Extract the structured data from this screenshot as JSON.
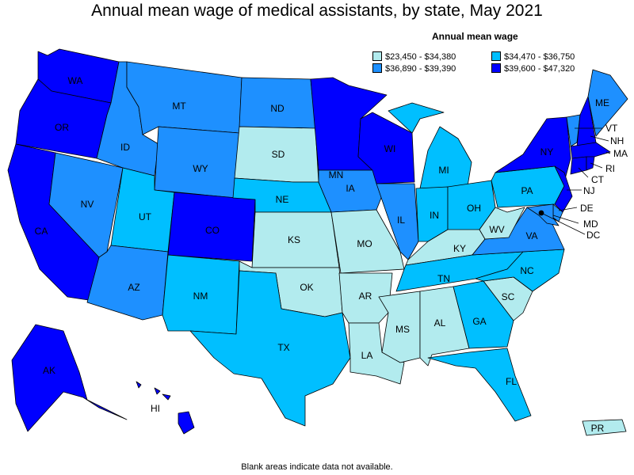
{
  "title": "Annual mean wage of medical assistants, by state, May 2021",
  "legend": {
    "title": "Annual mean wage",
    "items": [
      {
        "label": "$23,450 - $34,380",
        "color": "#b2ebee"
      },
      {
        "label": "$34,470 - $36,750",
        "color": "#00bfff"
      },
      {
        "label": "$36,890 - $39,390",
        "color": "#1e90ff"
      },
      {
        "label": "$39,600 - $47,320",
        "color": "#0000ff"
      }
    ]
  },
  "footnote": "Blank areas indicate data not available.",
  "states": {
    "WA": {
      "label": "WA",
      "bin": 3
    },
    "OR": {
      "label": "OR",
      "bin": 3
    },
    "CA": {
      "label": "CA",
      "bin": 3
    },
    "NV": {
      "label": "NV",
      "bin": 2
    },
    "ID": {
      "label": "ID",
      "bin": 2
    },
    "MT": {
      "label": "MT",
      "bin": 2
    },
    "WY": {
      "label": "WY",
      "bin": 2
    },
    "UT": {
      "label": "UT",
      "bin": 1
    },
    "AZ": {
      "label": "AZ",
      "bin": 2
    },
    "CO": {
      "label": "CO",
      "bin": 3
    },
    "NM": {
      "label": "NM",
      "bin": 1
    },
    "ND": {
      "label": "ND",
      "bin": 2
    },
    "SD": {
      "label": "SD",
      "bin": 0
    },
    "NE": {
      "label": "NE",
      "bin": 1
    },
    "KS": {
      "label": "KS",
      "bin": 0
    },
    "OK": {
      "label": "OK",
      "bin": 0
    },
    "TX": {
      "label": "TX",
      "bin": 1
    },
    "MN": {
      "label": "MN",
      "bin": 3
    },
    "IA": {
      "label": "IA",
      "bin": 2
    },
    "MO": {
      "label": "MO",
      "bin": 0
    },
    "AR": {
      "label": "AR",
      "bin": 0
    },
    "LA": {
      "label": "LA",
      "bin": 0
    },
    "WI": {
      "label": "WI",
      "bin": 3
    },
    "IL": {
      "label": "IL",
      "bin": 2
    },
    "MI": {
      "label": "MI",
      "bin": 1
    },
    "IN": {
      "label": "IN",
      "bin": 1
    },
    "OH": {
      "label": "OH",
      "bin": 1
    },
    "KY": {
      "label": "KY",
      "bin": 0
    },
    "TN": {
      "label": "TN",
      "bin": 1
    },
    "MS": {
      "label": "MS",
      "bin": 0
    },
    "AL": {
      "label": "AL",
      "bin": 0
    },
    "GA": {
      "label": "GA",
      "bin": 1
    },
    "FL": {
      "label": "FL",
      "bin": 1
    },
    "SC": {
      "label": "SC",
      "bin": 0
    },
    "NC": {
      "label": "NC",
      "bin": 1
    },
    "VA": {
      "label": "VA",
      "bin": 2
    },
    "WV": {
      "label": "WV",
      "bin": 0
    },
    "PA": {
      "label": "PA",
      "bin": 1
    },
    "NY": {
      "label": "NY",
      "bin": 3
    },
    "VT": {
      "label": "VT",
      "bin": 2
    },
    "NH": {
      "label": "NH",
      "bin": 3
    },
    "ME": {
      "label": "ME",
      "bin": 2
    },
    "MA": {
      "label": "MA",
      "bin": 3
    },
    "RI": {
      "label": "RI",
      "bin": 3
    },
    "CT": {
      "label": "CT",
      "bin": 3
    },
    "NJ": {
      "label": "NJ",
      "bin": 3
    },
    "DE": {
      "label": "DE",
      "bin": 2
    },
    "MD": {
      "label": "MD",
      "bin": 2
    },
    "DC": {
      "label": "DC",
      "bin": 3
    },
    "AK": {
      "label": "AK",
      "bin": 3
    },
    "HI": {
      "label": "HI",
      "bin": 3
    },
    "PR": {
      "label": "PR",
      "bin": 0
    }
  }
}
